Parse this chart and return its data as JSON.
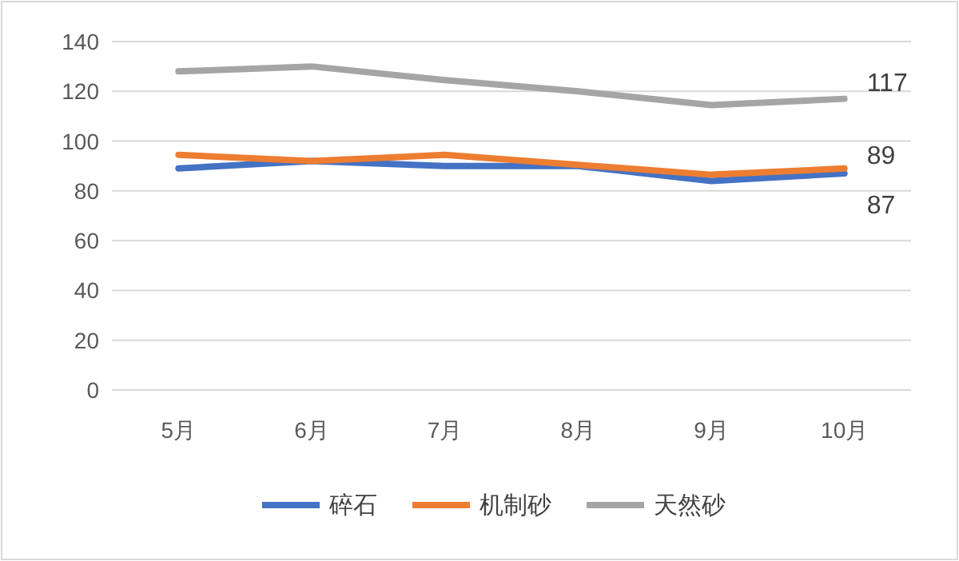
{
  "chart_data": {
    "type": "line",
    "categories": [
      "5月",
      "6月",
      "7月",
      "8月",
      "9月",
      "10月"
    ],
    "series": [
      {
        "name": "碎石",
        "color": "#4472c4",
        "values": [
          89,
          92,
          90,
          90,
          84,
          87
        ],
        "value_labels": [
          null,
          null,
          null,
          null,
          null,
          "87"
        ]
      },
      {
        "name": "机制砂",
        "color": "#ed7d31",
        "values": [
          94.5,
          92,
          94.5,
          90.5,
          86.5,
          89
        ],
        "value_labels": [
          null,
          null,
          null,
          null,
          null,
          "89"
        ]
      },
      {
        "name": "天然砂",
        "color": "#a5a5a5",
        "values": [
          128,
          130,
          124.5,
          120,
          114.5,
          117
        ],
        "value_labels": [
          null,
          null,
          null,
          null,
          null,
          "117"
        ]
      }
    ],
    "ylim": [
      0,
      140
    ],
    "yticks": [
      0,
      20,
      40,
      60,
      80,
      100,
      120,
      140
    ],
    "grid": "y",
    "legend": "bottom",
    "marker": "none",
    "line_style": "solid"
  }
}
